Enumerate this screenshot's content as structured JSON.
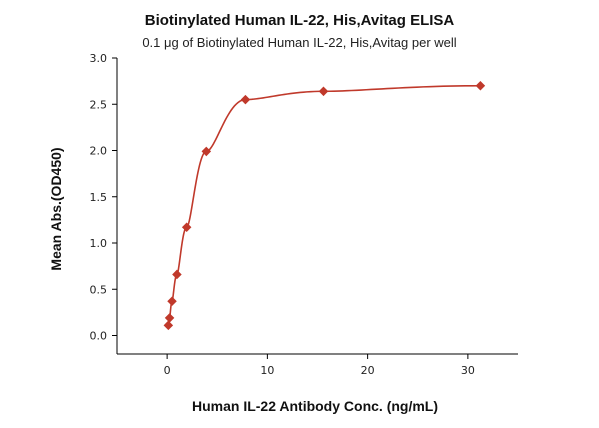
{
  "chart_data": {
    "type": "scatter",
    "title": "Biotinylated Human IL-22, His,Avitag ELISA",
    "subtitle": "0.1 μg of Biotinylated Human IL-22, His,Avitag per well",
    "xlabel": "Human IL-22 Antibody Conc. (ng/mL)",
    "ylabel": "Mean Abs.(OD450)",
    "xlim": [
      -5,
      35
    ],
    "ylim": [
      -0.2,
      3.0
    ],
    "xticks": [
      0,
      10,
      20,
      30
    ],
    "yticks": [
      0.0,
      0.5,
      1.0,
      1.5,
      2.0,
      2.5,
      3.0
    ],
    "xtick_labels": [
      "0",
      "10",
      "20",
      "30"
    ],
    "ytick_labels": [
      "0.0",
      "0.5",
      "1.0",
      "1.5",
      "2.0",
      "2.5",
      "3.0"
    ],
    "grid": false,
    "series": [
      {
        "x": [
          0.122,
          0.244,
          0.488,
          0.977,
          1.95,
          3.91,
          7.81,
          15.6,
          31.25
        ],
        "y": [
          0.11,
          0.19,
          0.37,
          0.66,
          1.17,
          1.99,
          2.55,
          2.64,
          2.7
        ],
        "color": "#c0392b",
        "marker": "diamond",
        "fit": "curve"
      }
    ]
  }
}
